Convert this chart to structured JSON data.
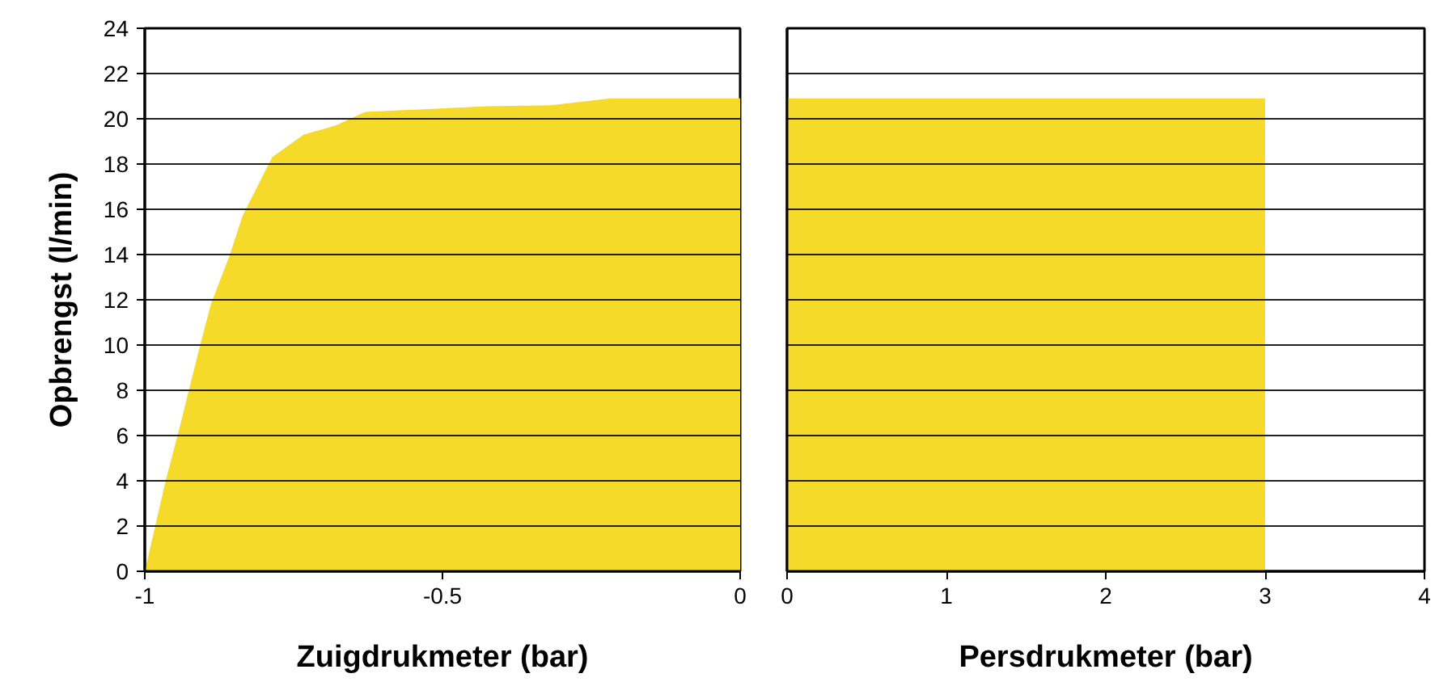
{
  "chart_data": [
    {
      "type": "area",
      "xlabel": "Zuigdrukmeter (bar)",
      "ylabel": "Opbrengst (l/min)",
      "color": "#f6da2a",
      "x": [
        -1,
        -0.965,
        -0.943,
        -0.907,
        -0.889,
        -0.857,
        -0.836,
        -0.786,
        -0.733,
        -0.68,
        -0.63,
        -0.427,
        -0.318,
        -0.218,
        0
      ],
      "values": [
        0,
        4.0,
        6.2,
        10.0,
        11.8,
        14.0,
        15.7,
        18.3,
        19.3,
        19.7,
        20.3,
        20.55,
        20.6,
        20.9,
        20.9
      ],
      "xlim": [
        -1,
        0
      ],
      "xticks": [
        -1,
        -0.5,
        0
      ],
      "ylim": [
        0,
        24
      ],
      "yticks": [
        0,
        2,
        4,
        6,
        8,
        10,
        12,
        14,
        16,
        18,
        20,
        22,
        24
      ],
      "grid": "y"
    },
    {
      "type": "area",
      "xlabel": "Persdrukmeter (bar)",
      "color": "#f6da2a",
      "x": [
        0,
        3
      ],
      "values": [
        20.9,
        20.9
      ],
      "xlim": [
        0,
        4
      ],
      "xticks": [
        0,
        1,
        2,
        3,
        4
      ],
      "ylim": [
        0,
        24
      ],
      "yticks": [
        0,
        2,
        4,
        6,
        8,
        10,
        12,
        14,
        16,
        18,
        20,
        22,
        24
      ],
      "grid": "y",
      "tick_labels": "x"
    }
  ]
}
